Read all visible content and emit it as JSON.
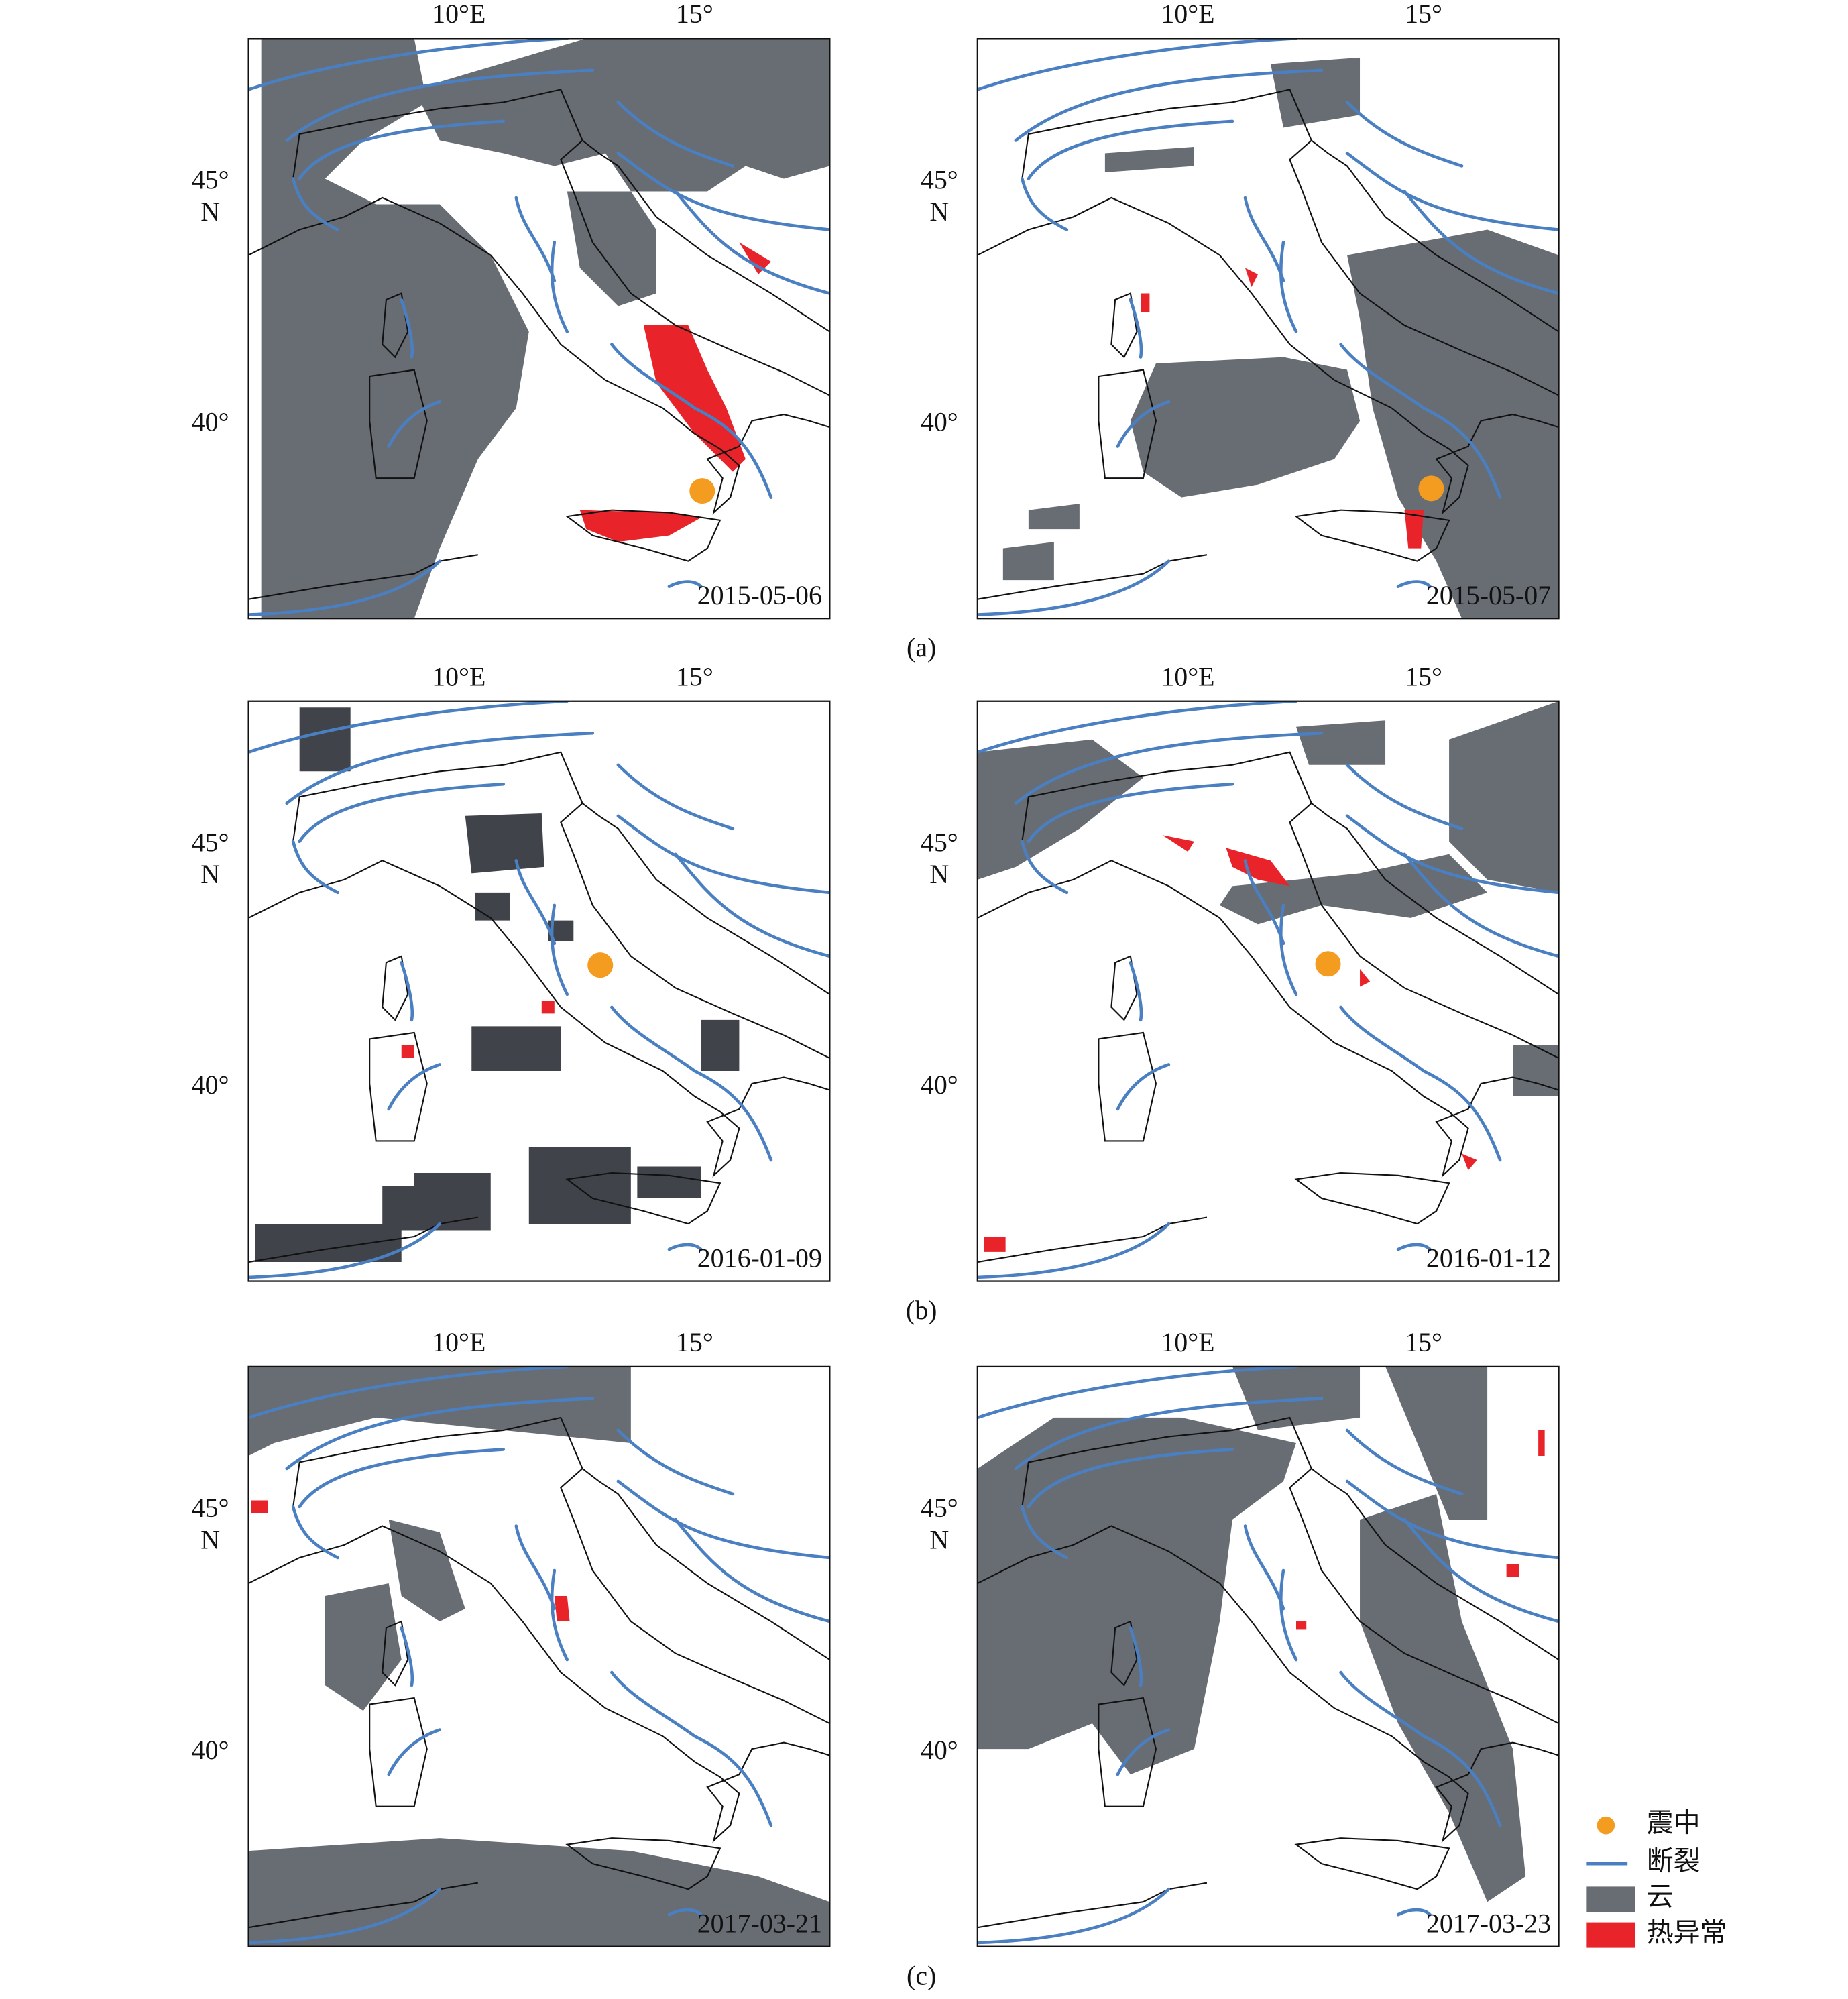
{
  "panels": [
    {
      "label": "(a)",
      "dates": [
        "2015-05-06",
        "2015-05-07"
      ]
    },
    {
      "label": "(b)",
      "dates": [
        "2016-01-09",
        "2016-01-12"
      ]
    },
    {
      "label": "(c)",
      "dates": [
        "2017-03-21",
        "2017-03-23"
      ]
    }
  ],
  "axes": {
    "lon_ticks": [
      "10°E",
      "15°"
    ],
    "lat_ticks": [
      "45°",
      "40°"
    ],
    "lat_unit": "N"
  },
  "legend": [
    "震中",
    "断裂",
    "云",
    "热异常"
  ]
}
